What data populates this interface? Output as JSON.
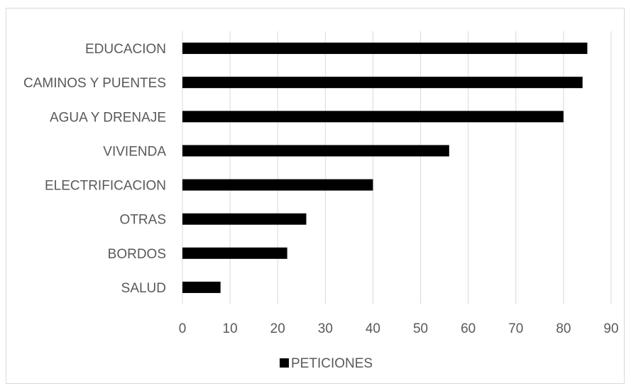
{
  "chart_data": {
    "type": "bar",
    "orientation": "horizontal",
    "title": "",
    "xlabel": "",
    "ylabel": "",
    "categories": [
      "SALUD",
      "BORDOS",
      "OTRAS",
      "ELECTRIFICACION",
      "VIVIENDA",
      "AGUA Y DRENAJE",
      "CAMINOS Y PUENTES",
      "EDUCACION"
    ],
    "series": [
      {
        "name": "PETICIONES",
        "values": [
          8,
          22,
          26,
          40,
          56,
          80,
          84,
          85
        ],
        "color": "#000000"
      }
    ],
    "xlim": [
      0,
      90
    ],
    "x_ticks": [
      0,
      10,
      20,
      30,
      40,
      50,
      60,
      70,
      80,
      90
    ],
    "grid": "vertical",
    "gridline_color": "#d9d9d9",
    "legend_position": "bottom"
  }
}
